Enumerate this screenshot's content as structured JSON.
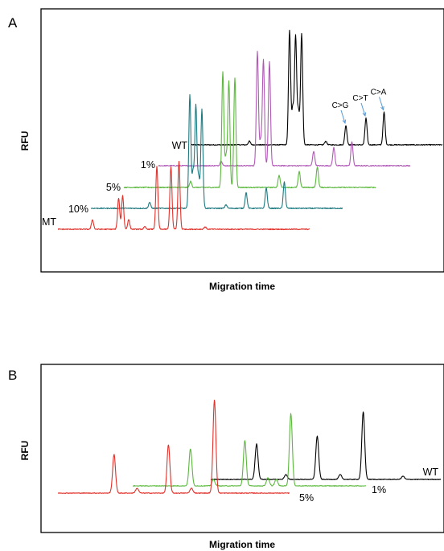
{
  "chart_data": [
    {
      "panel": "A",
      "type": "line",
      "xlabel": "Migration time",
      "ylabel": "RFU",
      "series": [
        {
          "name": "WT",
          "color": "#000000",
          "peaks": [
            {
              "x": 0.33,
              "h": 0.95
            },
            {
              "x": 0.345,
              "h": 0.9
            },
            {
              "x": 0.36,
              "h": 0.92
            },
            {
              "x": 0.338,
              "h": 0.3
            },
            {
              "x": 0.352,
              "h": 0.28
            },
            {
              "x": 0.47,
              "h": 0.16
            },
            {
              "x": 0.52,
              "h": 0.22
            },
            {
              "x": 0.565,
              "h": 0.27
            },
            {
              "x": 0.23,
              "h": 0.03
            },
            {
              "x": 0.42,
              "h": 0.03
            }
          ]
        },
        {
          "name": "1%",
          "color": "#b05ab5",
          "peaks": [
            {
              "x": 0.33,
              "h": 0.95
            },
            {
              "x": 0.345,
              "h": 0.88
            },
            {
              "x": 0.36,
              "h": 0.86
            },
            {
              "x": 0.338,
              "h": 0.2
            },
            {
              "x": 0.47,
              "h": 0.12
            },
            {
              "x": 0.52,
              "h": 0.15
            },
            {
              "x": 0.565,
              "h": 0.2
            },
            {
              "x": 0.24,
              "h": 0.04
            }
          ]
        },
        {
          "name": "5%",
          "color": "#5cb83e",
          "peaks": [
            {
              "x": 0.33,
              "h": 0.96
            },
            {
              "x": 0.345,
              "h": 0.88
            },
            {
              "x": 0.36,
              "h": 0.91
            },
            {
              "x": 0.338,
              "h": 0.25
            },
            {
              "x": 0.47,
              "h": 0.1
            },
            {
              "x": 0.52,
              "h": 0.13
            },
            {
              "x": 0.565,
              "h": 0.17
            },
            {
              "x": 0.25,
              "h": 0.05
            }
          ]
        },
        {
          "name": "10%",
          "color": "#1e7a80",
          "peaks": [
            {
              "x": 0.33,
              "h": 0.94
            },
            {
              "x": 0.345,
              "h": 0.85
            },
            {
              "x": 0.36,
              "h": 0.82
            },
            {
              "x": 0.338,
              "h": 0.3
            },
            {
              "x": 0.352,
              "h": 0.25
            },
            {
              "x": 0.47,
              "h": 0.13
            },
            {
              "x": 0.52,
              "h": 0.17
            },
            {
              "x": 0.565,
              "h": 0.22
            },
            {
              "x": 0.23,
              "h": 0.05
            },
            {
              "x": 0.42,
              "h": 0.03
            }
          ]
        },
        {
          "name": "MT",
          "color": "#e2312b",
          "peaks": [
            {
              "x": 0.235,
              "h": 0.26
            },
            {
              "x": 0.245,
              "h": 0.28
            },
            {
              "x": 0.26,
              "h": 0.08
            },
            {
              "x": 0.17,
              "h": 0.08
            },
            {
              "x": 0.33,
              "h": 0.52
            },
            {
              "x": 0.365,
              "h": 0.52
            },
            {
              "x": 0.385,
              "h": 0.56
            },
            {
              "x": 0.3,
              "h": 0.02
            },
            {
              "x": 0.45,
              "h": 0.02
            }
          ]
        }
      ],
      "annotations": [
        {
          "text": "C>G",
          "series": "WT",
          "peak_x": 0.47
        },
        {
          "text": "C>T",
          "series": "WT",
          "peak_x": 0.52
        },
        {
          "text": "C>A",
          "series": "WT",
          "peak_x": 0.565
        }
      ]
    },
    {
      "panel": "B",
      "type": "line",
      "xlabel": "Migration time",
      "ylabel": "RFU",
      "series": [
        {
          "name": "WT",
          "color": "#000000",
          "peaks": [
            {
              "x": 0.2,
              "h": 0.22
            },
            {
              "x": 0.345,
              "h": 0.27
            },
            {
              "x": 0.455,
              "h": 0.42
            },
            {
              "x": 0.27,
              "h": 0.03
            },
            {
              "x": 0.4,
              "h": 0.03
            },
            {
              "x": 0.55,
              "h": 0.02
            }
          ]
        },
        {
          "name": "1%",
          "color": "#5cb83e",
          "peaks": [
            {
              "x": 0.215,
              "h": 0.23
            },
            {
              "x": 0.345,
              "h": 0.28
            },
            {
              "x": 0.455,
              "h": 0.45
            },
            {
              "x": 0.27,
              "h": 0.04
            },
            {
              "x": 0.4,
              "h": 0.05
            },
            {
              "x": 0.42,
              "h": 0.04
            }
          ]
        },
        {
          "name": "5%",
          "color": "#e2312b",
          "peaks": [
            {
              "x": 0.215,
              "h": 0.24
            },
            {
              "x": 0.345,
              "h": 0.3
            },
            {
              "x": 0.455,
              "h": 0.58
            },
            {
              "x": 0.27,
              "h": 0.03
            },
            {
              "x": 0.4,
              "h": 0.03
            }
          ]
        }
      ]
    }
  ],
  "panel_letters": [
    "A",
    "B"
  ]
}
